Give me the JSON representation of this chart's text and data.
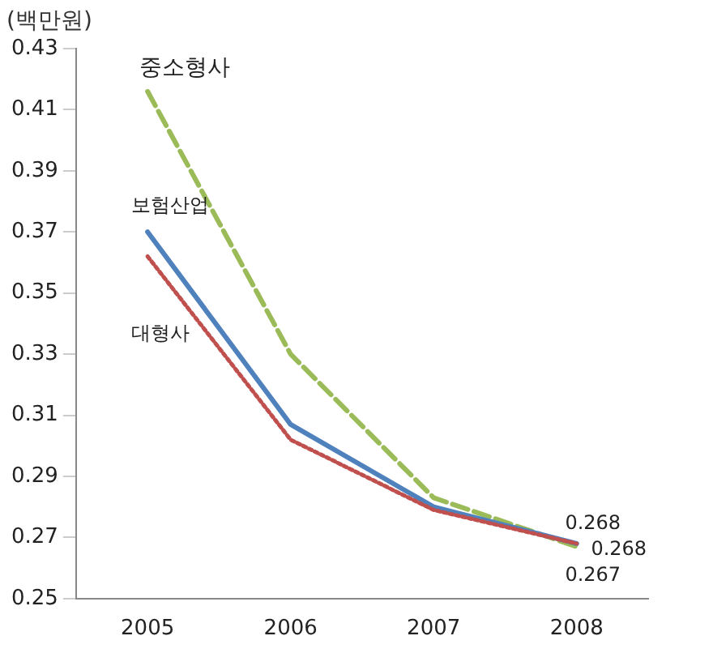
{
  "chart_data": {
    "type": "line",
    "ylabel": "(백만원)",
    "categories": [
      "2005",
      "2006",
      "2007",
      "2008"
    ],
    "ylim": [
      0.25,
      0.43
    ],
    "yticks": [
      0.25,
      0.27,
      0.29,
      0.31,
      0.33,
      0.35,
      0.37,
      0.39,
      0.41,
      0.43
    ],
    "grid": false,
    "legend": false,
    "series": [
      {
        "name": "중소형사",
        "color": "#9bbb59",
        "line_style": "dashed",
        "values": [
          0.416,
          0.33,
          0.283,
          0.267
        ],
        "value_labels": [
          null,
          null,
          null,
          "0.267"
        ]
      },
      {
        "name": "보험산업",
        "color": "#4f81bd",
        "line_style": "solid",
        "values": [
          0.37,
          0.307,
          0.28,
          0.268
        ],
        "value_labels": [
          null,
          null,
          null,
          "0.268"
        ]
      },
      {
        "name": "대형사",
        "color": "#c0504d",
        "line_style": "dotted",
        "values": [
          0.362,
          0.302,
          0.279,
          0.268
        ],
        "value_labels": [
          null,
          null,
          null,
          "0.268"
        ]
      }
    ]
  }
}
